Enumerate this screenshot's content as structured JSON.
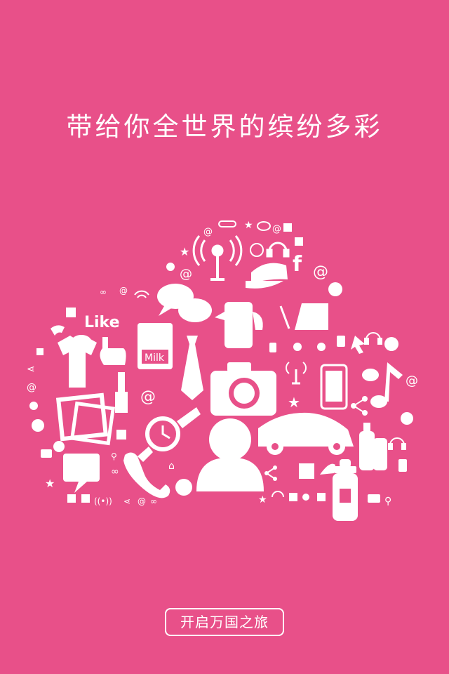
{
  "page": {
    "headline": "带给你全世界的缤纷多彩",
    "background_color": "#e85089",
    "foreground_color": "#ffffff"
  },
  "illustration": {
    "like_label": "Like",
    "milk_label": "Milk",
    "at_symbol": "@",
    "facebook_letter": "f",
    "icons": [
      "radio-tower-icon",
      "baseball-cap-icon",
      "chat-bubbles-icon",
      "kettle-icon",
      "baby-stroller-icon",
      "like-hand-icon",
      "tshirt-icon",
      "milk-carton-icon",
      "necktie-icon",
      "camera-icon",
      "smartphone-icon",
      "music-note-icon",
      "lipstick-icon",
      "photos-icon",
      "wristwatch-icon",
      "person-icon",
      "car-icon",
      "lotion-bottles-icon",
      "baby-bottle-icon",
      "speech-bubble-icon",
      "telephone-icon",
      "globe-icon",
      "headset-icon",
      "share-icon",
      "star-icon",
      "paperclip-icon",
      "cursor-arrow-icon",
      "wifi-icon"
    ]
  },
  "cta": {
    "label": "开启万国之旅"
  }
}
